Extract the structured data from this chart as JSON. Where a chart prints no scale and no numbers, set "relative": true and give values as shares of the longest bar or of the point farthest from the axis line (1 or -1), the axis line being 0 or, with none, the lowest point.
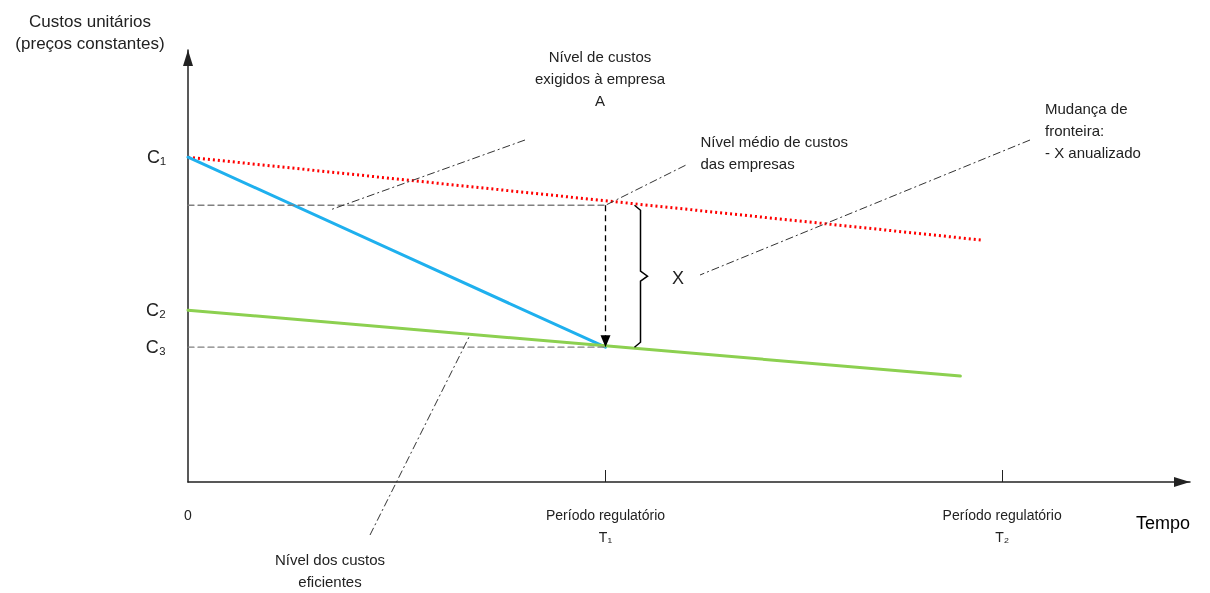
{
  "chart_data": {
    "type": "line",
    "relative": true,
    "xlabel": "Tempo",
    "categories": [
      "0",
      null,
      null,
      null,
      null,
      null,
      null,
      null,
      null,
      null,
      null,
      null,
      null,
      null,
      null,
      null,
      null,
      null,
      null,
      null,
      "Período regulatório\nT₁",
      null,
      null,
      null,
      null,
      null,
      null,
      null,
      null,
      null,
      null,
      null,
      null,
      null,
      null,
      null,
      null,
      null,
      null,
      "Período regulatório\nT₂",
      null,
      null,
      null,
      null,
      null,
      null,
      null,
      null,
      null
    ],
    "grid": false,
    "marker": "none",
    "series": [
      {
        "color": "#ff0000",
        "line_style": "dotted",
        "values": [
          1,
          null,
          null,
          null,
          null,
          null,
          null,
          null,
          null,
          null,
          null,
          null,
          null,
          null,
          null,
          null,
          null,
          null,
          null,
          null,
          null,
          null,
          null,
          null,
          null,
          null,
          null,
          null,
          null,
          null,
          null,
          null,
          null,
          null,
          null,
          null,
          null,
          null,
          0.745,
          null,
          null,
          null,
          null,
          null,
          null,
          null,
          null,
          null,
          null
        ]
      },
      {
        "color": "#1fb0ee",
        "line_style": "solid",
        "values": [
          1,
          null,
          null,
          null,
          null,
          null,
          null,
          null,
          null,
          null,
          null,
          null,
          null,
          null,
          null,
          null,
          null,
          null,
          null,
          null,
          0.415,
          null,
          null,
          null,
          null,
          null,
          null,
          null,
          null,
          null,
          null,
          null,
          null,
          null,
          null,
          null,
          null,
          null,
          null,
          null,
          null,
          null,
          null,
          null,
          null,
          null,
          null,
          null,
          null
        ]
      },
      {
        "color": "#8cd050",
        "line_style": "solid",
        "values": [
          0.529,
          null,
          null,
          null,
          null,
          null,
          null,
          null,
          null,
          null,
          null,
          null,
          null,
          null,
          null,
          null,
          null,
          null,
          null,
          null,
          null,
          null,
          null,
          null,
          null,
          null,
          null,
          null,
          null,
          null,
          null,
          null,
          null,
          null,
          null,
          null,
          null,
          0.326,
          null,
          null,
          null,
          null,
          null,
          null,
          null,
          null,
          null,
          null,
          null
        ]
      },
      {
        "color": "#808080",
        "line_style": "dashed",
        "values": [
          0.852,
          null,
          null,
          null,
          null,
          null,
          null,
          null,
          null,
          null,
          null,
          null,
          null,
          null,
          null,
          null,
          null,
          null,
          null,
          null,
          0.852,
          null,
          null,
          null,
          null,
          null,
          null,
          null,
          null,
          null,
          null,
          null,
          null,
          null,
          null,
          null,
          null,
          null,
          null,
          null,
          null,
          null,
          null,
          null,
          null,
          null,
          null,
          null,
          null
        ]
      },
      {
        "color": "#808080",
        "line_style": "dashed",
        "values": [
          0.415,
          null,
          null,
          null,
          null,
          null,
          null,
          null,
          null,
          null,
          null,
          null,
          null,
          null,
          null,
          null,
          null,
          null,
          null,
          null,
          0.415,
          null,
          null,
          null,
          null,
          null,
          null,
          null,
          null,
          null,
          null,
          null,
          null,
          null,
          null,
          null,
          null,
          null,
          null,
          null,
          null,
          null,
          null,
          null,
          null,
          null,
          null,
          null,
          null
        ]
      }
    ],
    "annotations": [
      "Nível de custos\nexigidos à empresa\nA",
      {
        "text": "Nível médio de custos\ndas empresas",
        "x": "Período regulatório\nT₁",
        "y": 0.852
      },
      "Mudança de\nfronteira:\n- X anualizado",
      "Nível dos custos\neficientes",
      "X",
      {
        "text": "C₁",
        "x": "0",
        "y": 1
      },
      {
        "text": "C₂",
        "x": "0",
        "y": 0.529
      },
      {
        "text": "C₃",
        "x": "0",
        "y": 0.415
      },
      "Custos unitários\n(preços constantes)"
    ]
  }
}
